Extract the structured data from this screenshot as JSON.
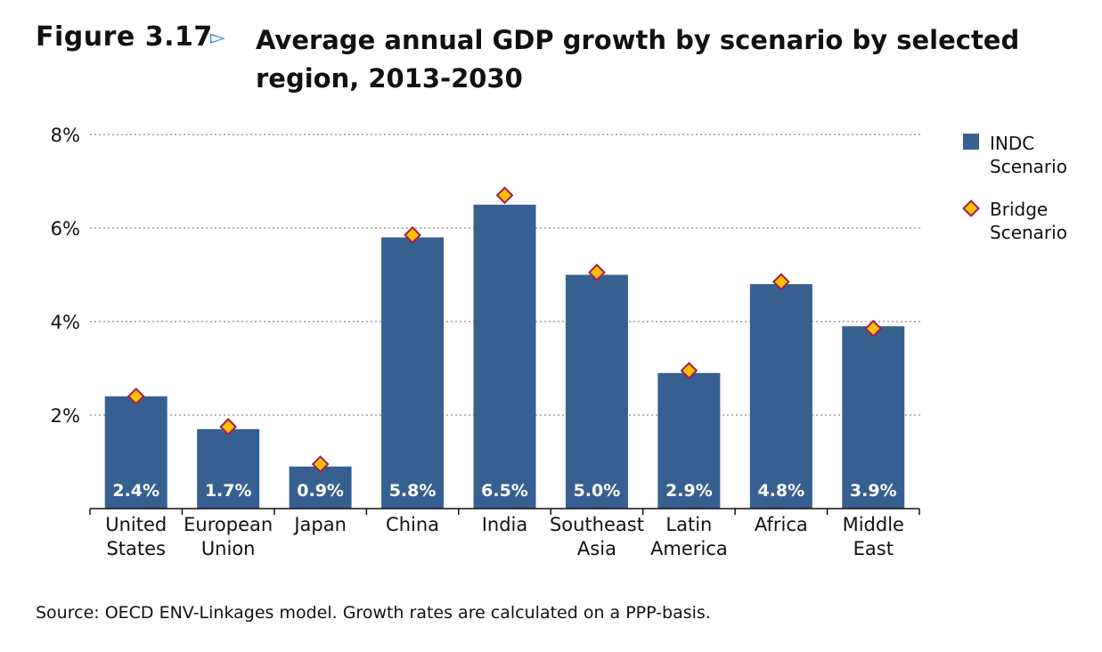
{
  "figure": {
    "label": "Figure 3.17",
    "arrow": "▻",
    "title": "Average annual GDP growth by scenario by selected region, 2013-2030"
  },
  "source": "Source: OECD ENV-Linkages model. Growth rates are calculated on a PPP-basis.",
  "colors": {
    "bar": "#376091",
    "marker_fill": "#ffc000",
    "marker_stroke": "#a0204f",
    "grid": "#b5b5b5"
  },
  "chart_data": {
    "type": "bar",
    "title": "Average annual GDP growth by scenario by selected region, 2013-2030",
    "xlabel": "",
    "ylabel": "",
    "ylim": [
      0,
      8
    ],
    "yticks": [
      2,
      4,
      6,
      8
    ],
    "ytick_labels": [
      "2%",
      "4%",
      "6%",
      "8%"
    ],
    "grid": "horizontal dotted",
    "legend_position": "top-right",
    "categories": [
      [
        "United",
        "States"
      ],
      [
        "European",
        "Union"
      ],
      [
        "Japan"
      ],
      [
        "China"
      ],
      [
        "India"
      ],
      [
        "Southeast",
        "Asia"
      ],
      [
        "Latin",
        "America"
      ],
      [
        "Africa"
      ],
      [
        "Middle",
        "East"
      ]
    ],
    "series": [
      {
        "name": "INDC Scenario",
        "legend_lines": [
          "INDC",
          "Scenario"
        ],
        "mark": "bar",
        "values": [
          2.4,
          1.7,
          0.9,
          5.8,
          6.5,
          5.0,
          2.9,
          4.8,
          3.9
        ],
        "labels": [
          "2.4%",
          "1.7%",
          "0.9%",
          "5.8%",
          "6.5%",
          "5.0%",
          "2.9%",
          "4.8%",
          "3.9%"
        ]
      },
      {
        "name": "Bridge Scenario",
        "legend_lines": [
          "Bridge",
          "Scenario"
        ],
        "mark": "diamond",
        "values": [
          2.4,
          1.75,
          0.95,
          5.85,
          6.7,
          5.05,
          2.95,
          4.85,
          3.85
        ]
      }
    ]
  }
}
